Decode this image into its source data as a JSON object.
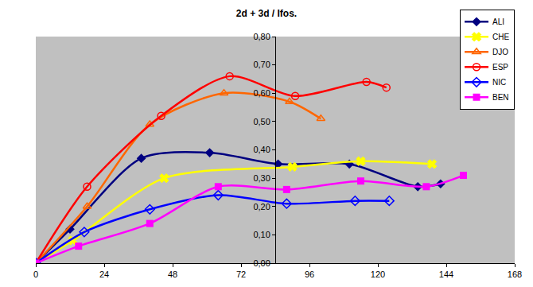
{
  "chart_data": {
    "type": "line",
    "title": "2d + 3d / Ifos.",
    "line_style": "smooth",
    "grid": false,
    "legend": "top-right",
    "xlim": [
      0,
      168
    ],
    "xticks": [
      0,
      24,
      48,
      72,
      96,
      120,
      144,
      168
    ],
    "ylim": [
      0,
      0.8
    ],
    "yticks": [
      {
        "value": 0,
        "label": "0,00"
      },
      {
        "value": 0.1,
        "label": "0,10"
      },
      {
        "value": 0.2,
        "label": "0,20"
      },
      {
        "value": 0.3,
        "label": "0,30"
      },
      {
        "value": 0.4,
        "label": "0,40"
      },
      {
        "value": 0.5,
        "label": "0,50"
      },
      {
        "value": 0.6,
        "label": "0,60"
      },
      {
        "value": 0.7,
        "label": "0,70"
      },
      {
        "value": 0.8,
        "label": "0,80"
      }
    ],
    "series": [
      {
        "name": "ALI",
        "color": "#000080",
        "marker": "diamond",
        "x": [
          0,
          12,
          37,
          61,
          85,
          110,
          134,
          142
        ],
        "values": [
          0,
          0.12,
          0.37,
          0.39,
          0.35,
          0.35,
          0.27,
          0.28
        ]
      },
      {
        "name": "CHE",
        "color": "#FFFF00",
        "marker": "x",
        "x": [
          0,
          13,
          45,
          90,
          114,
          139
        ],
        "values": [
          0,
          0.08,
          0.3,
          0.34,
          0.36,
          0.35
        ]
      },
      {
        "name": "DJO",
        "color": "#FF6600",
        "marker": "triangle-up-open",
        "x": [
          0,
          18,
          40,
          66,
          89,
          100
        ],
        "values": [
          0,
          0.2,
          0.49,
          0.6,
          0.57,
          0.51
        ]
      },
      {
        "name": "ESP",
        "color": "#FF0000",
        "marker": "circle-open",
        "x": [
          0,
          18,
          44,
          68,
          91,
          116,
          123
        ],
        "values": [
          0,
          0.27,
          0.52,
          0.66,
          0.59,
          0.64,
          0.62
        ]
      },
      {
        "name": "NIC",
        "color": "#0000FF",
        "marker": "diamond-open",
        "x": [
          0,
          17,
          40,
          64,
          88,
          112,
          124
        ],
        "values": [
          0,
          0.11,
          0.19,
          0.24,
          0.21,
          0.22,
          0.22
        ]
      },
      {
        "name": "BEN",
        "color": "#FF00FF",
        "marker": "square",
        "x": [
          0,
          15,
          40,
          64,
          88,
          114,
          137,
          150
        ],
        "values": [
          0,
          0.06,
          0.14,
          0.27,
          0.26,
          0.29,
          0.27,
          0.31
        ]
      }
    ]
  }
}
